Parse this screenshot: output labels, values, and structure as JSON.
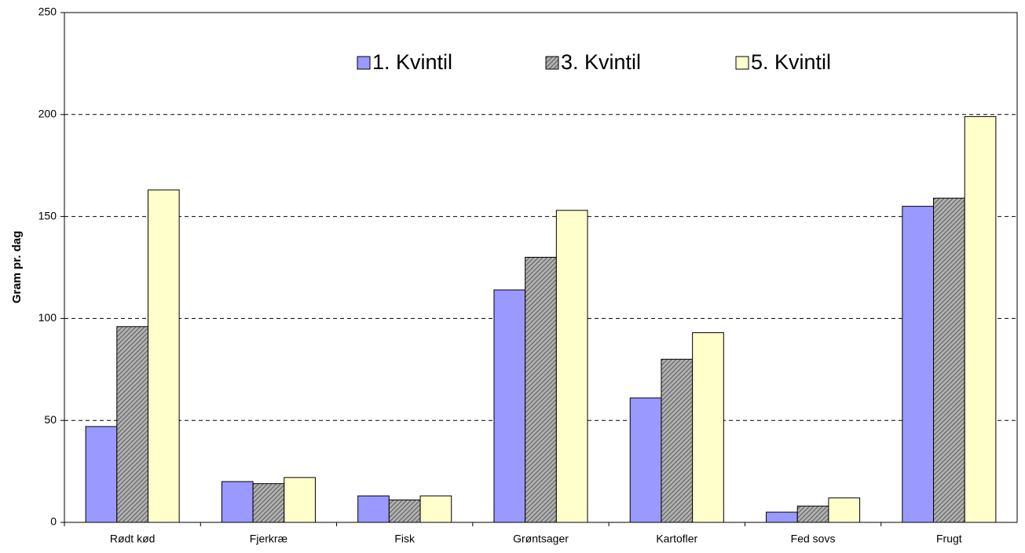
{
  "chart_data": {
    "type": "bar",
    "y_label": "Gram pr. dag",
    "categories": [
      "Rødt kød",
      "Fjerkræ",
      "Fisk",
      "Grøntsager",
      "Kartofler",
      "Fed sovs",
      "Frugt"
    ],
    "series": [
      {
        "name": "1. Kvintil",
        "color": "#9999ff",
        "values": [
          47,
          20,
          13,
          114,
          61,
          5,
          155
        ]
      },
      {
        "name": "3. Kvintil",
        "color": "#b0b0b0",
        "pattern": "diagonal-hatch",
        "values": [
          96,
          19,
          11,
          130,
          80,
          8,
          159
        ]
      },
      {
        "name": "5. Kvintil",
        "color": "#ffffcc",
        "values": [
          163,
          22,
          13,
          153,
          93,
          12,
          199
        ]
      }
    ],
    "ylim": [
      0,
      250
    ],
    "yticks": [
      0,
      50,
      100,
      150,
      200,
      250
    ],
    "grid": true,
    "legend": "top"
  }
}
